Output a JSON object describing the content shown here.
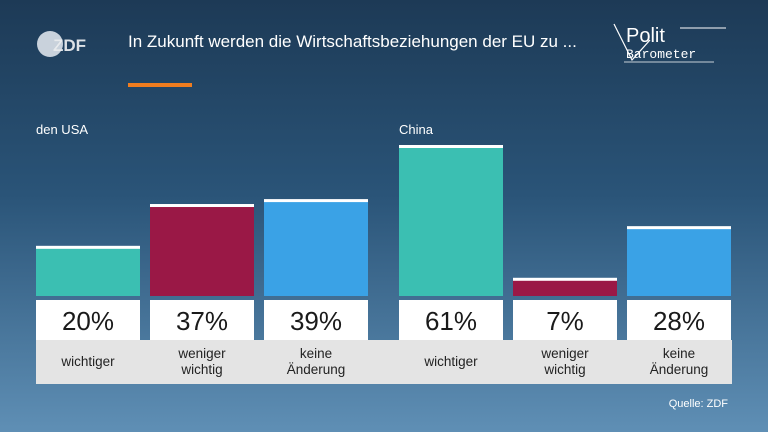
{
  "header": {
    "title": "In Zukunft werden die Wirtschaftsbeziehungen der EU zu ...",
    "logo_left": "ZDF",
    "logo_right_line1": "Polit",
    "logo_right_line2": "Barometer"
  },
  "colors": {
    "wichtiger": "#3bbfb2",
    "weniger_wichtig": "#9a1846",
    "keine_aenderung": "#3aa2e6",
    "accent": "#f07d1f"
  },
  "chart_data": {
    "type": "bar",
    "ylim": [
      0,
      100
    ],
    "groups": [
      {
        "name": "den USA",
        "categories": [
          "wichtiger",
          "weniger\nwichtig",
          "keine\nÄnderung"
        ],
        "values": [
          20,
          37,
          39
        ],
        "labels": [
          "20%",
          "37%",
          "39%"
        ]
      },
      {
        "name": "China",
        "categories": [
          "wichtiger",
          "weniger\nwichtig",
          "keine\nÄnderung"
        ],
        "values": [
          61,
          7,
          28
        ],
        "labels": [
          "61%",
          "7%",
          "28%"
        ]
      }
    ]
  },
  "footer": {
    "source": "Quelle: ZDF"
  }
}
